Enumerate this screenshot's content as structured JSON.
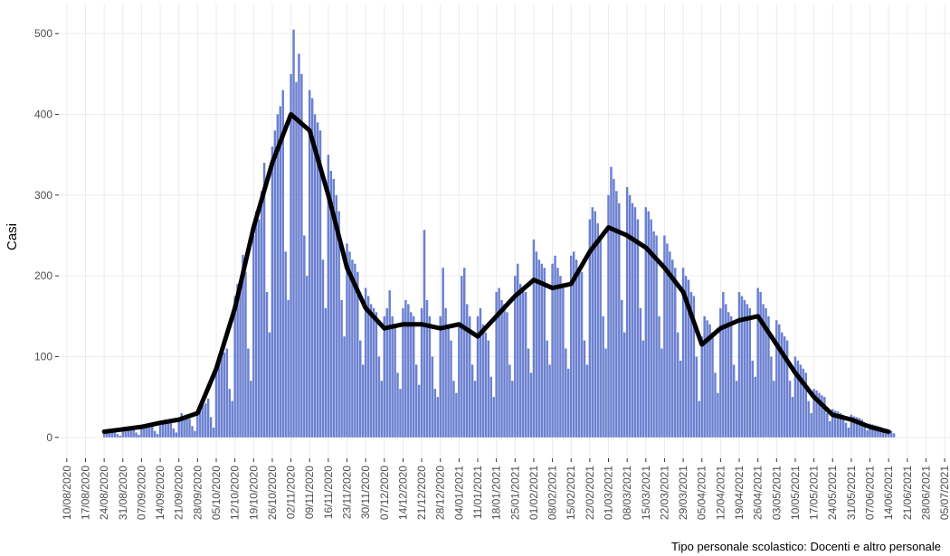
{
  "chart_data": {
    "type": "bar",
    "ylabel": "Casi",
    "caption": "Tipo personale scolastico: Docenti e altro personale",
    "xlim": [
      "07/08/2020",
      "07/07/2021"
    ],
    "ylim": [
      -26,
      536
    ],
    "yticks": [
      0,
      100,
      200,
      300,
      400,
      500
    ],
    "grid": true,
    "xticks": [
      "10/08/2020",
      "17/08/2020",
      "24/08/2020",
      "31/08/2020",
      "07/09/2020",
      "14/09/2020",
      "21/09/2020",
      "28/09/2020",
      "05/10/2020",
      "12/10/2020",
      "19/10/2020",
      "26/10/2020",
      "02/11/2020",
      "09/11/2020",
      "16/11/2020",
      "23/11/2020",
      "30/11/2020",
      "07/12/2020",
      "14/12/2020",
      "21/12/2020",
      "28/12/2020",
      "04/01/2021",
      "11/01/2021",
      "18/01/2021",
      "25/01/2021",
      "01/02/2021",
      "08/02/2021",
      "15/02/2021",
      "22/02/2021",
      "01/03/2021",
      "08/03/2021",
      "15/03/2021",
      "22/03/2021",
      "29/03/2021",
      "05/04/2021",
      "12/04/2021",
      "19/04/2021",
      "26/04/2021",
      "03/05/2021",
      "10/05/2021",
      "17/05/2021",
      "24/05/2021",
      "31/05/2021",
      "07/06/2021",
      "14/06/2021",
      "21/06/2021",
      "28/06/2021",
      "05/07/2021"
    ],
    "x": [
      "24/08/2020",
      "25/08/2020",
      "26/08/2020",
      "27/08/2020",
      "28/08/2020",
      "29/08/2020",
      "30/08/2020",
      "31/08/2020",
      "01/09/2020",
      "02/09/2020",
      "03/09/2020",
      "04/09/2020",
      "05/09/2020",
      "06/09/2020",
      "07/09/2020",
      "08/09/2020",
      "09/09/2020",
      "10/09/2020",
      "11/09/2020",
      "12/09/2020",
      "13/09/2020",
      "14/09/2020",
      "15/09/2020",
      "16/09/2020",
      "17/09/2020",
      "18/09/2020",
      "19/09/2020",
      "20/09/2020",
      "21/09/2020",
      "22/09/2020",
      "23/09/2020",
      "24/09/2020",
      "25/09/2020",
      "26/09/2020",
      "27/09/2020",
      "28/09/2020",
      "29/09/2020",
      "30/09/2020",
      "01/10/2020",
      "02/10/2020",
      "03/10/2020",
      "04/10/2020",
      "05/10/2020",
      "06/10/2020",
      "07/10/2020",
      "08/10/2020",
      "09/10/2020",
      "10/10/2020",
      "11/10/2020",
      "12/10/2020",
      "13/10/2020",
      "14/10/2020",
      "15/10/2020",
      "16/10/2020",
      "17/10/2020",
      "18/10/2020",
      "19/10/2020",
      "20/10/2020",
      "21/10/2020",
      "22/10/2020",
      "23/10/2020",
      "24/10/2020",
      "25/10/2020",
      "26/10/2020",
      "27/10/2020",
      "28/10/2020",
      "29/10/2020",
      "30/10/2020",
      "31/10/2020",
      "01/11/2020",
      "02/11/2020",
      "03/11/2020",
      "04/11/2020",
      "05/11/2020",
      "06/11/2020",
      "07/11/2020",
      "08/11/2020",
      "09/11/2020",
      "10/11/2020",
      "11/11/2020",
      "12/11/2020",
      "13/11/2020",
      "14/11/2020",
      "15/11/2020",
      "16/11/2020",
      "17/11/2020",
      "18/11/2020",
      "19/11/2020",
      "20/11/2020",
      "21/11/2020",
      "22/11/2020",
      "23/11/2020",
      "24/11/2020",
      "25/11/2020",
      "26/11/2020",
      "27/11/2020",
      "28/11/2020",
      "29/11/2020",
      "30/11/2020",
      "01/12/2020",
      "02/12/2020",
      "03/12/2020",
      "04/12/2020",
      "05/12/2020",
      "06/12/2020",
      "07/12/2020",
      "08/12/2020",
      "09/12/2020",
      "10/12/2020",
      "11/12/2020",
      "12/12/2020",
      "13/12/2020",
      "14/12/2020",
      "15/12/2020",
      "16/12/2020",
      "17/12/2020",
      "18/12/2020",
      "19/12/2020",
      "20/12/2020",
      "21/12/2020",
      "22/12/2020",
      "23/12/2020",
      "24/12/2020",
      "25/12/2020",
      "26/12/2020",
      "27/12/2020",
      "28/12/2020",
      "29/12/2020",
      "30/12/2020",
      "31/12/2020",
      "01/01/2021",
      "02/01/2021",
      "03/01/2021",
      "04/01/2021",
      "05/01/2021",
      "06/01/2021",
      "07/01/2021",
      "08/01/2021",
      "09/01/2021",
      "10/01/2021",
      "11/01/2021",
      "12/01/2021",
      "13/01/2021",
      "14/01/2021",
      "15/01/2021",
      "16/01/2021",
      "17/01/2021",
      "18/01/2021",
      "19/01/2021",
      "20/01/2021",
      "21/01/2021",
      "22/01/2021",
      "23/01/2021",
      "24/01/2021",
      "25/01/2021",
      "26/01/2021",
      "27/01/2021",
      "28/01/2021",
      "29/01/2021",
      "30/01/2021",
      "31/01/2021",
      "01/02/2021",
      "02/02/2021",
      "03/02/2021",
      "04/02/2021",
      "05/02/2021",
      "06/02/2021",
      "07/02/2021",
      "08/02/2021",
      "09/02/2021",
      "10/02/2021",
      "11/02/2021",
      "12/02/2021",
      "13/02/2021",
      "14/02/2021",
      "15/02/2021",
      "16/02/2021",
      "17/02/2021",
      "18/02/2021",
      "19/02/2021",
      "20/02/2021",
      "21/02/2021",
      "22/02/2021",
      "23/02/2021",
      "24/02/2021",
      "25/02/2021",
      "26/02/2021",
      "27/02/2021",
      "28/02/2021",
      "01/03/2021",
      "02/03/2021",
      "03/03/2021",
      "04/03/2021",
      "05/03/2021",
      "06/03/2021",
      "07/03/2021",
      "08/03/2021",
      "09/03/2021",
      "10/03/2021",
      "11/03/2021",
      "12/03/2021",
      "13/03/2021",
      "14/03/2021",
      "15/03/2021",
      "16/03/2021",
      "17/03/2021",
      "18/03/2021",
      "19/03/2021",
      "20/03/2021",
      "21/03/2021",
      "22/03/2021",
      "23/03/2021",
      "24/03/2021",
      "25/03/2021",
      "26/03/2021",
      "27/03/2021",
      "28/03/2021",
      "29/03/2021",
      "30/03/2021",
      "31/03/2021",
      "01/04/2021",
      "02/04/2021",
      "03/04/2021",
      "04/04/2021",
      "05/04/2021",
      "06/04/2021",
      "07/04/2021",
      "08/04/2021",
      "09/04/2021",
      "10/04/2021",
      "11/04/2021",
      "12/04/2021",
      "13/04/2021",
      "14/04/2021",
      "15/04/2021",
      "16/04/2021",
      "17/04/2021",
      "18/04/2021",
      "19/04/2021",
      "20/04/2021",
      "21/04/2021",
      "22/04/2021",
      "23/04/2021",
      "24/04/2021",
      "25/04/2021",
      "26/04/2021",
      "27/04/2021",
      "28/04/2021",
      "29/04/2021",
      "30/04/2021",
      "01/05/2021",
      "02/05/2021",
      "03/05/2021",
      "04/05/2021",
      "05/05/2021",
      "06/05/2021",
      "07/05/2021",
      "08/05/2021",
      "09/05/2021",
      "10/05/2021",
      "11/05/2021",
      "12/05/2021",
      "13/05/2021",
      "14/05/2021",
      "15/05/2021",
      "16/05/2021",
      "17/05/2021",
      "18/05/2021",
      "19/05/2021",
      "20/05/2021",
      "21/05/2021",
      "22/05/2021",
      "23/05/2021",
      "24/05/2021",
      "25/05/2021",
      "26/05/2021",
      "27/05/2021",
      "28/05/2021",
      "29/05/2021",
      "30/05/2021",
      "31/05/2021",
      "01/06/2021",
      "02/06/2021",
      "03/06/2021",
      "04/06/2021",
      "05/06/2021",
      "06/06/2021",
      "07/06/2021",
      "08/06/2021",
      "09/06/2021",
      "10/06/2021",
      "11/06/2021",
      "12/06/2021",
      "13/06/2021",
      "14/06/2021",
      "15/06/2021",
      "16/06/2021"
    ],
    "series": [
      {
        "type": "bar",
        "color": "#6b80d0",
        "values": [
          8,
          7,
          6,
          8,
          9,
          4,
          2,
          10,
          12,
          11,
          10,
          12,
          6,
          3,
          14,
          15,
          16,
          14,
          15,
          8,
          4,
          19,
          21,
          22,
          20,
          19,
          11,
          6,
          24,
          30,
          26,
          25,
          23,
          14,
          8,
          32,
          38,
          40,
          42,
          48,
          25,
          12,
          90,
          100,
          112,
          105,
          110,
          60,
          45,
          175,
          190,
          188,
          226,
          205,
          110,
          70,
          250,
          280,
          270,
          305,
          340,
          180,
          130,
          360,
          380,
          400,
          410,
          430,
          230,
          170,
          450,
          505,
          440,
          475,
          450,
          250,
          200,
          430,
          420,
          400,
          390,
          380,
          220,
          160,
          350,
          330,
          320,
          300,
          280,
          170,
          125,
          240,
          230,
          220,
          215,
          205,
          120,
          90,
          185,
          175,
          165,
          160,
          155,
          100,
          70,
          150,
          160,
          182,
          150,
          140,
          80,
          60,
          160,
          170,
          165,
          155,
          150,
          90,
          65,
          160,
          257,
          170,
          150,
          100,
          60,
          50,
          150,
          210,
          160,
          140,
          120,
          70,
          55,
          140,
          200,
          210,
          165,
          150,
          90,
          70,
          150,
          160,
          140,
          130,
          120,
          75,
          50,
          180,
          185,
          170,
          165,
          155,
          90,
          70,
          200,
          215,
          190,
          185,
          180,
          110,
          80,
          245,
          230,
          220,
          215,
          210,
          120,
          90,
          215,
          225,
          210,
          200,
          190,
          110,
          85,
          225,
          230,
          220,
          210,
          205,
          120,
          90,
          270,
          285,
          280,
          265,
          250,
          150,
          110,
          300,
          335,
          320,
          305,
          290,
          170,
          130,
          310,
          300,
          290,
          285,
          270,
          160,
          120,
          285,
          280,
          270,
          255,
          250,
          150,
          110,
          250,
          240,
          230,
          220,
          210,
          130,
          95,
          210,
          200,
          195,
          180,
          175,
          100,
          45,
          125,
          150,
          145,
          140,
          130,
          80,
          55,
          160,
          180,
          165,
          155,
          150,
          90,
          70,
          180,
          175,
          170,
          165,
          160,
          95,
          75,
          185,
          180,
          165,
          160,
          150,
          100,
          70,
          145,
          140,
          130,
          125,
          120,
          70,
          50,
          100,
          95,
          90,
          85,
          80,
          45,
          30,
          60,
          58,
          55,
          52,
          50,
          30,
          20,
          35,
          33,
          32,
          30,
          28,
          18,
          12,
          28,
          26,
          25,
          24,
          22,
          14,
          9,
          17,
          16,
          15,
          14,
          13,
          8,
          5,
          9,
          8,
          5
        ]
      },
      {
        "type": "line",
        "color": "#000000",
        "x": [
          "24/08/2020",
          "31/08/2020",
          "07/09/2020",
          "14/09/2020",
          "21/09/2020",
          "28/09/2020",
          "05/10/2020",
          "12/10/2020",
          "19/10/2020",
          "26/10/2020",
          "02/11/2020",
          "09/11/2020",
          "16/11/2020",
          "23/11/2020",
          "30/11/2020",
          "07/12/2020",
          "14/12/2020",
          "21/12/2020",
          "28/12/2020",
          "04/01/2021",
          "11/01/2021",
          "18/01/2021",
          "25/01/2021",
          "01/02/2021",
          "08/02/2021",
          "15/02/2021",
          "22/02/2021",
          "01/03/2021",
          "08/03/2021",
          "15/03/2021",
          "22/03/2021",
          "29/03/2021",
          "05/04/2021",
          "12/04/2021",
          "19/04/2021",
          "26/04/2021",
          "03/05/2021",
          "10/05/2021",
          "17/05/2021",
          "24/05/2021",
          "31/05/2021",
          "07/06/2021",
          "14/06/2021"
        ],
        "values": [
          7,
          10,
          13,
          18,
          22,
          30,
          85,
          160,
          260,
          340,
          400,
          380,
          300,
          210,
          160,
          135,
          140,
          140,
          135,
          140,
          125,
          150,
          175,
          195,
          185,
          190,
          230,
          260,
          250,
          235,
          210,
          180,
          115,
          135,
          145,
          150,
          115,
          80,
          50,
          28,
          22,
          13,
          7
        ]
      }
    ]
  }
}
